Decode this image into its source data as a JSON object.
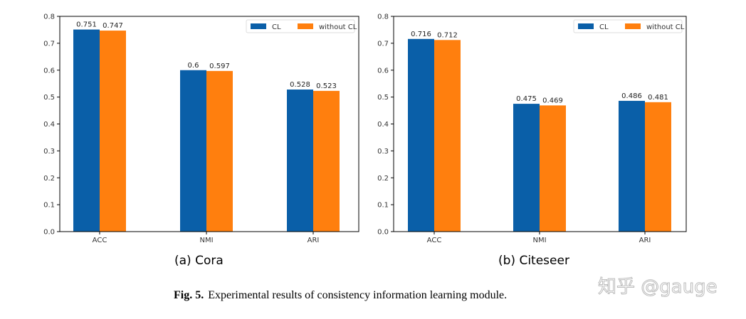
{
  "colors": {
    "CL": "#0a5fa8",
    "without_CL": "#ff7f0e"
  },
  "chart_data": [
    {
      "type": "bar",
      "subtitle": "(a) Cora",
      "categories": [
        "ACC",
        "NMI",
        "ARI"
      ],
      "series": [
        {
          "name": "CL",
          "values": [
            0.751,
            0.6,
            0.528
          ],
          "labels": [
            "0.751",
            "0.6",
            "0.528"
          ]
        },
        {
          "name": "without CL",
          "values": [
            0.747,
            0.597,
            0.523
          ],
          "labels": [
            "0.747",
            "0.597",
            "0.523"
          ]
        }
      ],
      "ylim": [
        0,
        0.8
      ],
      "yticks": [
        "0.0",
        "0.1",
        "0.2",
        "0.3",
        "0.4",
        "0.5",
        "0.6",
        "0.7",
        "0.8"
      ],
      "legend": "top-right",
      "grid": false
    },
    {
      "type": "bar",
      "subtitle": "(b) Citeseer",
      "categories": [
        "ACC",
        "NMI",
        "ARI"
      ],
      "series": [
        {
          "name": "CL",
          "values": [
            0.716,
            0.475,
            0.486
          ],
          "labels": [
            "0.716",
            "0.475",
            "0.486"
          ]
        },
        {
          "name": "without CL",
          "values": [
            0.712,
            0.469,
            0.481
          ],
          "labels": [
            "0.712",
            "0.469",
            "0.481"
          ]
        }
      ],
      "ylim": [
        0,
        0.8
      ],
      "yticks": [
        "0.0",
        "0.1",
        "0.2",
        "0.3",
        "0.4",
        "0.5",
        "0.6",
        "0.7",
        "0.8"
      ],
      "legend": "top-right",
      "grid": false
    }
  ],
  "caption": {
    "label": "Fig. 5.",
    "text": "Experimental results of consistency information learning module."
  },
  "watermark": "知乎 @gauge"
}
